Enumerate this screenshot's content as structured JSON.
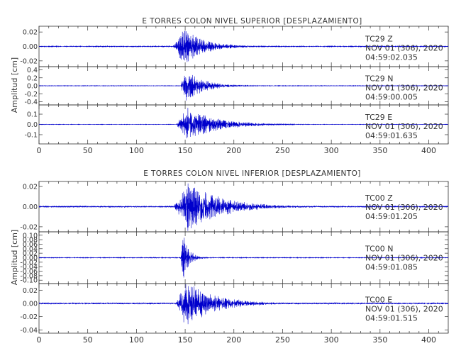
{
  "chart_data": [
    {
      "type": "line",
      "title": "E TORRES COLON NIVEL SUPERIOR [DESPLAZAMIENTO]",
      "ylabel": "Amplitud [cm]",
      "xlabel": "",
      "xlim": [
        0,
        420
      ],
      "x_ticks": [
        "0",
        "50",
        "100",
        "150",
        "200",
        "250",
        "300",
        "350",
        "400"
      ],
      "grid": false,
      "color": "#0000cc",
      "panels": [
        {
          "station": "TC29",
          "component": "Z",
          "date": "NOV 01 (306), 2020",
          "time": "04:59:02.035",
          "ylim": [
            -0.028,
            0.028
          ],
          "y_ticks": [
            0.02,
            0.0,
            -0.02
          ],
          "y_tick_labels": [
            "0.02",
            "0.00",
            "-0.02"
          ],
          "onset_s": 137,
          "peak_s": 148,
          "peak_amplitude": 0.026,
          "decay_s": 22,
          "noise": 0.0006
        },
        {
          "station": "TC29",
          "component": "N",
          "date": "NOV 01 (306), 2020",
          "time": "04:59:00.005",
          "ylim": [
            -0.48,
            0.48
          ],
          "y_ticks": [
            0.4,
            0.2,
            0.0,
            -0.2,
            -0.4
          ],
          "y_tick_labels": [
            "0.4",
            "0.2",
            "0.0",
            "-0.2",
            "-0.4"
          ],
          "onset_s": 145,
          "peak_s": 150,
          "peak_amplitude": 0.44,
          "decay_s": 18,
          "noise": 0.006
        },
        {
          "station": "TC29",
          "component": "E",
          "date": "NOV 01 (306), 2020",
          "time": "04:59:01.635",
          "ylim": [
            -0.19,
            0.19
          ],
          "y_ticks": [
            0.1,
            0.0,
            -0.1
          ],
          "y_tick_labels": [
            "0.1",
            "0.0",
            "-0.1"
          ],
          "onset_s": 140,
          "peak_s": 152,
          "peak_amplitude": 0.17,
          "decay_s": 30,
          "noise": 0.002
        }
      ]
    },
    {
      "type": "line",
      "title": "E TORRES COLON NIVEL INFERIOR [DESPLAZAMIENTO]",
      "ylabel": "Amplitud [cm]",
      "xlabel": "",
      "xlim": [
        0,
        420
      ],
      "x_ticks": [
        "0",
        "50",
        "100",
        "150",
        "200",
        "250",
        "300",
        "350",
        "400"
      ],
      "grid": false,
      "color": "#0000cc",
      "panels": [
        {
          "station": "TC00",
          "component": "Z",
          "date": "NOV 01 (306), 2020",
          "time": "04:59:01.205",
          "ylim": [
            -0.025,
            0.025
          ],
          "y_ticks": [
            0.02,
            0.0,
            -0.02
          ],
          "y_tick_labels": [
            "0.02",
            "0.00",
            "-0.02"
          ],
          "onset_s": 137,
          "peak_s": 153,
          "peak_amplitude": 0.024,
          "decay_s": 35,
          "noise": 0.0007
        },
        {
          "station": "TC00",
          "component": "N",
          "date": "NOV 01 (306), 2020",
          "time": "04:59:01.085",
          "ylim": [
            -0.115,
            0.115
          ],
          "y_ticks": [
            0.1,
            0.08,
            0.06,
            0.04,
            0.02,
            0.0,
            -0.02,
            -0.04,
            -0.06,
            -0.08,
            -0.1
          ],
          "y_tick_labels": [
            "0.10",
            "0.08",
            "0.06",
            "0.04",
            "0.02",
            "0.00",
            "-0.02",
            "-0.04",
            "-0.06",
            "-0.08",
            "-0.10"
          ],
          "onset_s": 145,
          "peak_s": 148,
          "peak_amplitude": 0.11,
          "decay_s": 6,
          "noise": 0.0015
        },
        {
          "station": "TC00",
          "component": "E",
          "date": "NOV 01 (306), 2020",
          "time": "04:59:01.515",
          "ylim": [
            -0.045,
            0.03
          ],
          "y_ticks": [
            0.02,
            0.0,
            -0.02,
            -0.04
          ],
          "y_tick_labels": [
            "0.02",
            "0.00",
            "-0.02",
            "-0.04"
          ],
          "onset_s": 140,
          "peak_s": 150,
          "peak_amplitude": 0.035,
          "decay_s": 30,
          "noise": 0.0012
        }
      ]
    }
  ]
}
